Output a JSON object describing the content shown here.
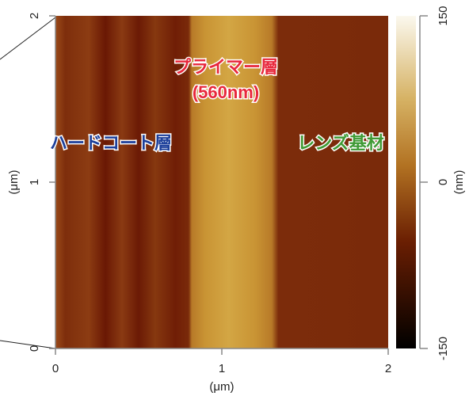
{
  "chart_data": {
    "type": "heatmap",
    "x_label": "(μm)",
    "y_label": "(μm)",
    "xlim": [
      0,
      2
    ],
    "xticks": [
      0,
      1,
      2
    ],
    "ylim": [
      0,
      2
    ],
    "yticks": [
      0,
      1,
      2
    ],
    "colorbar": {
      "label": "(nm)",
      "lim": [
        -150,
        150
      ],
      "ticks": [
        -150,
        0,
        150
      ]
    },
    "annotations": [
      {
        "text": "プライマー層",
        "color": "#e8283c"
      },
      {
        "text": "(560nm)",
        "color": "#e8283c"
      },
      {
        "text": "ハードコート層",
        "color": "#1c3f9a"
      },
      {
        "text": "レンズ基材",
        "color": "#3f9a35"
      }
    ]
  }
}
